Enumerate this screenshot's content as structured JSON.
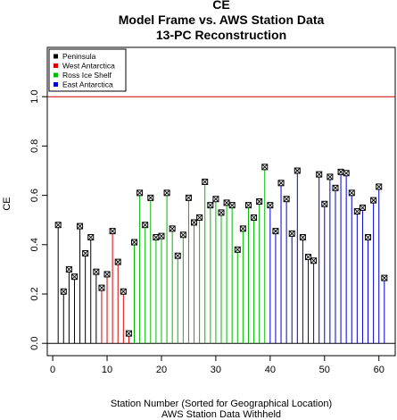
{
  "chart_data": {
    "type": "scatter",
    "title_lines": [
      "CE",
      "Model Frame vs. AWS Station Data",
      "13-PC Reconstruction"
    ],
    "xlabel_lines": [
      "Station Number (Sorted for Geographical Location)",
      "AWS Station Data Withheld"
    ],
    "ylabel": "CE",
    "xlim": [
      -1,
      63
    ],
    "ylim": [
      -0.05,
      1.2
    ],
    "xticks": [
      0,
      10,
      20,
      30,
      40,
      50,
      60
    ],
    "yticks": [
      0.0,
      0.2,
      0.4,
      0.6,
      0.8,
      1.0
    ],
    "ytick_labels": [
      "0.0",
      "0.2",
      "0.4",
      "0.6",
      "0.8",
      "1.0"
    ],
    "reference_lines": [
      {
        "y": 1.0,
        "color": "#cc0000"
      },
      {
        "y": 0.0,
        "color": "#000000"
      }
    ],
    "legend": {
      "placement": "top-left",
      "entries": [
        {
          "name": "Peninsula",
          "color": "#000000"
        },
        {
          "name": "West Antarctica",
          "color": "#dd0000"
        },
        {
          "name": "Ross Ice Shelf",
          "color": "#00bb00"
        },
        {
          "name": "East Antarctica",
          "color": "#0000cc"
        }
      ]
    },
    "groups": [
      {
        "color": "#000000",
        "x": [
          1,
          2,
          3,
          4,
          5,
          6,
          7,
          8
        ],
        "values": [
          0.48,
          0.21,
          0.3,
          0.27,
          0.475,
          0.365,
          0.43,
          0.29
        ]
      },
      {
        "color": "#dd0000",
        "x": [
          9,
          10,
          11,
          12,
          13,
          14
        ],
        "values": [
          0.225,
          0.28,
          0.455,
          0.33,
          0.21,
          0.04
        ]
      },
      {
        "color": "#00bb00",
        "x": [
          15,
          16,
          17,
          18,
          19,
          20,
          21,
          22,
          23,
          24,
          25,
          26,
          27,
          28,
          29,
          30,
          31,
          32,
          33,
          34,
          35,
          36,
          37,
          38,
          39
        ],
        "values": [
          0.41,
          0.61,
          0.48,
          0.59,
          0.43,
          0.435,
          0.61,
          0.465,
          0.355,
          0.44,
          0.59,
          0.49,
          0.51,
          0.655,
          0.56,
          0.585,
          0.53,
          0.57,
          0.56,
          0.38,
          0.465,
          0.56,
          0.51,
          0.575,
          0.715
        ]
      },
      {
        "color": "#0000cc",
        "x": [
          40,
          41,
          42,
          43,
          44,
          45,
          46,
          47,
          48,
          49,
          50,
          51,
          52,
          53,
          54,
          55,
          56,
          57,
          58,
          59,
          60,
          61
        ],
        "values": [
          0.56,
          0.455,
          0.65,
          0.585,
          0.445,
          0.7,
          0.43,
          0.35,
          0.335,
          0.685,
          0.565,
          0.675,
          0.63,
          0.695,
          0.69,
          0.61,
          0.535,
          0.55,
          0.43,
          0.58,
          0.635,
          0.265
        ]
      }
    ]
  }
}
